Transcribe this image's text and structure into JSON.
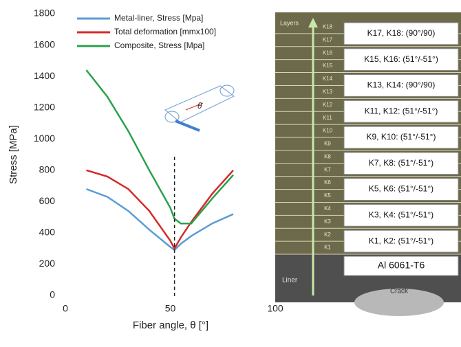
{
  "chart_data": {
    "type": "line",
    "x": [
      10,
      20,
      30,
      40,
      50,
      52,
      55,
      60,
      70,
      80
    ],
    "series": [
      {
        "name": "Metal-liner, Stress [Mpa]",
        "color": "#5b9bd5",
        "values": [
          680,
          630,
          540,
          420,
          310,
          290,
          330,
          380,
          460,
          520
        ]
      },
      {
        "name": "Total deformation [mmx100]",
        "color": "#d42a2a",
        "values": [
          800,
          760,
          680,
          540,
          350,
          300,
          370,
          470,
          650,
          800
        ]
      },
      {
        "name": "Composite, Stress [Mpa]",
        "color": "#2aa14a",
        "values": [
          1440,
          1270,
          1050,
          800,
          560,
          490,
          460,
          460,
          620,
          770
        ]
      }
    ],
    "xlabel": "Fiber angle, θ [°]",
    "ylabel": "Stress  [MPa]",
    "xlim": [
      0,
      100
    ],
    "xticks": [
      0,
      50,
      100
    ],
    "ylim": [
      0,
      1800
    ],
    "yticks": [
      0,
      200,
      400,
      600,
      800,
      1000,
      1200,
      1400,
      1600,
      1800
    ],
    "reference_line_x": 52,
    "grid": false,
    "legend": "top-left",
    "inset_label": "θ"
  },
  "layer_panel": {
    "title": "Layers",
    "layers": [
      "K1",
      "K2",
      "K3",
      "K4",
      "K5",
      "K6",
      "K7",
      "K8",
      "K9",
      "K10",
      "K11",
      "K12",
      "K13",
      "K14",
      "K15",
      "K16",
      "K17",
      "K18"
    ],
    "boxes": [
      "K17, K18: (90°/90)",
      "K15, K16: (51°/-51°)",
      "K13, K14: (90°/90)",
      "K11, K12: (51°/-51°)",
      "K9, K10: (51°/-51°)",
      "K7, K8: (51°/-51°)",
      "K5, K6: (51°/-51°)",
      "K3, K4: (51°/-51°)",
      "K1, K2: (51°/-51°)"
    ],
    "material": "Al 6061-T6",
    "liner": "Liner",
    "crack": "Crack"
  }
}
